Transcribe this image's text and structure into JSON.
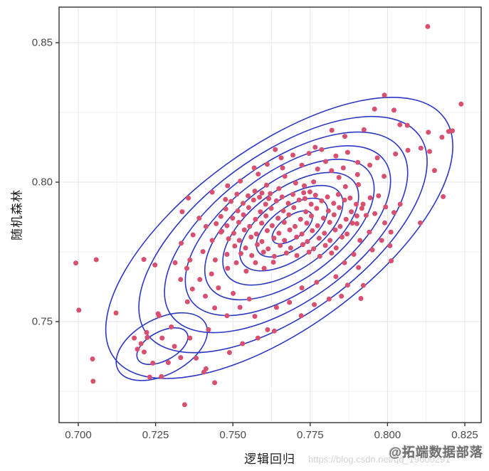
{
  "watermark": {
    "url": "https://blog.csdn.net/qq_19600291",
    "brand": "@拓端数据部落"
  },
  "colors": {
    "point": "#d94f70",
    "contour": "#2b38c4",
    "grid_major": "#e4e4e4",
    "grid_minor": "#f1f1f1",
    "panel_border": "#333333",
    "tick_mark": "#333333",
    "tick_text": "#4a4a4a"
  },
  "chart_data": {
    "type": "scatter",
    "title": "",
    "xlabel": "逻辑回归",
    "ylabel": "随机森林",
    "legend": "none",
    "grid": "on",
    "xlim": [
      0.69379,
      0.83029
    ],
    "ylim": [
      0.71378,
      0.86276
    ],
    "x_ticks": {
      "values": [
        0.7,
        0.725,
        0.75,
        0.775,
        0.8,
        0.825
      ],
      "labels": [
        "0.700",
        "0.725",
        "0.750",
        "0.775",
        "0.800",
        "0.825"
      ]
    },
    "y_ticks": {
      "values": [
        0.85,
        0.8,
        0.75
      ],
      "labels": [
        "0.85",
        "0.80",
        "0.75"
      ]
    },
    "x_minor": [
      0.7125,
      0.7375,
      0.7625,
      0.7875,
      0.8125
    ],
    "y_minor": [
      0.825,
      0.775,
      0.725
    ],
    "contours": [
      {
        "cx": 0.765,
        "cy": 0.78,
        "a": 0.066,
        "b": 0.0325,
        "rot": -36
      },
      {
        "cx": 0.7662,
        "cy": 0.7812,
        "a": 0.0545,
        "b": 0.0285,
        "rot": -36
      },
      {
        "cx": 0.7672,
        "cy": 0.782,
        "a": 0.0458,
        "b": 0.0248,
        "rot": -36
      },
      {
        "cx": 0.7678,
        "cy": 0.7826,
        "a": 0.0386,
        "b": 0.0212,
        "rot": -36
      },
      {
        "cx": 0.7683,
        "cy": 0.783,
        "a": 0.0318,
        "b": 0.0177,
        "rot": -36
      },
      {
        "cx": 0.7687,
        "cy": 0.7833,
        "a": 0.0255,
        "b": 0.0142,
        "rot": -36
      },
      {
        "cx": 0.7689,
        "cy": 0.7835,
        "a": 0.0194,
        "b": 0.0107,
        "rot": -36
      },
      {
        "cx": 0.7691,
        "cy": 0.7837,
        "a": 0.0134,
        "b": 0.0073,
        "rot": -36
      },
      {
        "cx": 0.7692,
        "cy": 0.7838,
        "a": 0.0076,
        "b": 0.004,
        "rot": -36
      },
      {
        "cx": 0.727,
        "cy": 0.741,
        "a": 0.016,
        "b": 0.01,
        "rot": -28
      },
      {
        "cx": 0.7272,
        "cy": 0.7412,
        "a": 0.009,
        "b": 0.0052,
        "rot": -28
      }
    ],
    "points": [
      [
        0.813,
        0.8558
      ],
      [
        0.8238,
        0.828
      ],
      [
        0.799,
        0.8312
      ],
      [
        0.8198,
        0.8182
      ],
      [
        0.8176,
        0.8161
      ],
      [
        0.8132,
        0.8179
      ],
      [
        0.8136,
        0.811
      ],
      [
        0.8108,
        0.8122
      ],
      [
        0.8066,
        0.8114
      ],
      [
        0.8026,
        0.8101
      ],
      [
        0.818,
        0.7948
      ],
      [
        0.8106,
        0.7854
      ],
      [
        0.8008,
        0.7772
      ],
      [
        0.8012,
        0.7718
      ],
      [
        0.7906,
        0.7694
      ],
      [
        0.7922,
        0.763
      ],
      [
        0.7914,
        0.7583
      ],
      [
        0.6992,
        0.771
      ],
      [
        0.7058,
        0.7722
      ],
      [
        0.7212,
        0.7723
      ],
      [
        0.7248,
        0.7703
      ],
      [
        0.7002,
        0.7541
      ],
      [
        0.7122,
        0.7531
      ],
      [
        0.7258,
        0.7528
      ],
      [
        0.7046,
        0.7366
      ],
      [
        0.7048,
        0.7286
      ],
      [
        0.7344,
        0.7202
      ],
      [
        0.7406,
        0.7319
      ],
      [
        0.7634,
        0.7466
      ],
      [
        0.7958,
        0.8262
      ],
      [
        0.8021,
        0.8258
      ],
      [
        0.804,
        0.8206
      ],
      [
        0.8064,
        0.8204
      ],
      [
        0.7924,
        0.8188
      ],
      [
        0.7862,
        0.8164
      ],
      [
        0.7766,
        0.8125
      ],
      [
        0.782,
        0.8186
      ],
      [
        0.821,
        0.8184
      ],
      [
        0.7356,
        0.7943
      ],
      [
        0.7336,
        0.7894
      ],
      [
        0.7476,
        0.7938
      ],
      [
        0.8152,
        0.8042
      ],
      [
        0.78,
        0.8074
      ],
      [
        0.7661,
        0.8051
      ],
      [
        0.7582,
        0.8029
      ],
      [
        0.7668,
        0.8021
      ],
      [
        0.7609,
        0.7989
      ],
      [
        0.7571,
        0.7968
      ],
      [
        0.7616,
        0.7941
      ],
      [
        0.7731,
        0.7987
      ],
      [
        0.7749,
        0.7965
      ],
      [
        0.7729,
        0.7962
      ],
      [
        0.7694,
        0.8097
      ],
      [
        0.7746,
        0.8103
      ],
      [
        0.7787,
        0.8117
      ],
      [
        0.7833,
        0.8094
      ],
      [
        0.7871,
        0.8107
      ],
      [
        0.7904,
        0.8071
      ],
      [
        0.7943,
        0.8061
      ],
      [
        0.7967,
        0.8087
      ],
      [
        0.7989,
        0.8021
      ],
      [
        0.7857,
        0.8051
      ],
      [
        0.7819,
        0.8041
      ],
      [
        0.7774,
        0.8047
      ],
      [
        0.7723,
        0.8061
      ],
      [
        0.7656,
        0.8087
      ],
      [
        0.7637,
        0.8117
      ],
      [
        0.7524,
        0.8004
      ],
      [
        0.7569,
        0.8051
      ],
      [
        0.7611,
        0.8064
      ],
      [
        0.7864,
        0.7984
      ],
      [
        0.7906,
        0.7991
      ],
      [
        0.7944,
        0.7944
      ],
      [
        0.7994,
        0.7911
      ],
      [
        0.7483,
        0.7987
      ],
      [
        0.7433,
        0.7964
      ],
      [
        0.7903,
        0.8027
      ],
      [
        0.7843,
        0.8017
      ],
      [
        0.7761,
        0.8001
      ],
      [
        0.7703,
        0.7997
      ],
      [
        0.7649,
        0.7977
      ],
      [
        0.7594,
        0.7961
      ],
      [
        0.7513,
        0.7957
      ],
      [
        0.7549,
        0.7951
      ],
      [
        0.7586,
        0.7946
      ],
      [
        0.7621,
        0.7959
      ],
      [
        0.7659,
        0.7947
      ],
      [
        0.7694,
        0.7956
      ],
      [
        0.7733,
        0.7941
      ],
      [
        0.7767,
        0.7953
      ],
      [
        0.7806,
        0.7947
      ],
      [
        0.7841,
        0.7956
      ],
      [
        0.7879,
        0.7943
      ],
      [
        0.7494,
        0.7931
      ],
      [
        0.7533,
        0.7924
      ],
      [
        0.7567,
        0.7936
      ],
      [
        0.7606,
        0.7921
      ],
      [
        0.7641,
        0.7933
      ],
      [
        0.7679,
        0.7924
      ],
      [
        0.7714,
        0.7936
      ],
      [
        0.7753,
        0.7921
      ],
      [
        0.7787,
        0.7933
      ],
      [
        0.7826,
        0.7924
      ],
      [
        0.7861,
        0.7936
      ],
      [
        0.7899,
        0.7921
      ],
      [
        0.7477,
        0.7904
      ],
      [
        0.7516,
        0.7897
      ],
      [
        0.7551,
        0.7909
      ],
      [
        0.7589,
        0.7894
      ],
      [
        0.7624,
        0.7906
      ],
      [
        0.7663,
        0.7897
      ],
      [
        0.7697,
        0.7909
      ],
      [
        0.7736,
        0.7894
      ],
      [
        0.7771,
        0.7906
      ],
      [
        0.7809,
        0.7897
      ],
      [
        0.7844,
        0.7909
      ],
      [
        0.7883,
        0.7894
      ],
      [
        0.7917,
        0.7906
      ],
      [
        0.7461,
        0.7877
      ],
      [
        0.7499,
        0.7871
      ],
      [
        0.7534,
        0.7883
      ],
      [
        0.7573,
        0.7867
      ],
      [
        0.7607,
        0.7879
      ],
      [
        0.7646,
        0.7871
      ],
      [
        0.7681,
        0.7883
      ],
      [
        0.7719,
        0.7867
      ],
      [
        0.7754,
        0.7879
      ],
      [
        0.7793,
        0.7871
      ],
      [
        0.7827,
        0.7883
      ],
      [
        0.7866,
        0.7867
      ],
      [
        0.7901,
        0.7879
      ],
      [
        0.7446,
        0.7851
      ],
      [
        0.7481,
        0.7844
      ],
      [
        0.7519,
        0.7856
      ],
      [
        0.7554,
        0.7841
      ],
      [
        0.7593,
        0.7853
      ],
      [
        0.7627,
        0.7844
      ],
      [
        0.7666,
        0.7856
      ],
      [
        0.7701,
        0.7841
      ],
      [
        0.7739,
        0.7853
      ],
      [
        0.7774,
        0.7844
      ],
      [
        0.7813,
        0.7856
      ],
      [
        0.7847,
        0.7841
      ],
      [
        0.7886,
        0.7853
      ],
      [
        0.7464,
        0.7824
      ],
      [
        0.7503,
        0.7817
      ],
      [
        0.7537,
        0.7829
      ],
      [
        0.7576,
        0.7814
      ],
      [
        0.7611,
        0.7826
      ],
      [
        0.7649,
        0.7817
      ],
      [
        0.7684,
        0.7829
      ],
      [
        0.7723,
        0.7814
      ],
      [
        0.7757,
        0.7826
      ],
      [
        0.7796,
        0.7817
      ],
      [
        0.7831,
        0.7829
      ],
      [
        0.7869,
        0.7814
      ],
      [
        0.7486,
        0.7797
      ],
      [
        0.7521,
        0.7791
      ],
      [
        0.7559,
        0.7803
      ],
      [
        0.7594,
        0.7787
      ],
      [
        0.7633,
        0.7799
      ],
      [
        0.7667,
        0.7791
      ],
      [
        0.7706,
        0.7803
      ],
      [
        0.7741,
        0.7787
      ],
      [
        0.7779,
        0.7799
      ],
      [
        0.7814,
        0.7791
      ],
      [
        0.7853,
        0.7803
      ],
      [
        0.7506,
        0.7771
      ],
      [
        0.7541,
        0.7764
      ],
      [
        0.7579,
        0.7776
      ],
      [
        0.7614,
        0.7761
      ],
      [
        0.7653,
        0.7773
      ],
      [
        0.7687,
        0.7764
      ],
      [
        0.7726,
        0.7776
      ],
      [
        0.7761,
        0.7761
      ],
      [
        0.7799,
        0.7773
      ],
      [
        0.7834,
        0.7764
      ],
      [
        0.7526,
        0.7744
      ],
      [
        0.7561,
        0.7737
      ],
      [
        0.7599,
        0.7749
      ],
      [
        0.7634,
        0.7734
      ],
      [
        0.7673,
        0.7746
      ],
      [
        0.7707,
        0.7737
      ],
      [
        0.7746,
        0.7749
      ],
      [
        0.7781,
        0.7734
      ],
      [
        0.7819,
        0.7746
      ],
      [
        0.7331,
        0.7651
      ],
      [
        0.7369,
        0.7617
      ],
      [
        0.7411,
        0.7591
      ],
      [
        0.7353,
        0.7571
      ],
      [
        0.7441,
        0.7549
      ],
      [
        0.7481,
        0.7521
      ],
      [
        0.7523,
        0.7551
      ],
      [
        0.7571,
        0.7519
      ],
      [
        0.7612,
        0.7471
      ],
      [
        0.7453,
        0.7621
      ],
      [
        0.7501,
        0.7601
      ],
      [
        0.7553,
        0.7581
      ],
      [
        0.7641,
        0.7551
      ],
      [
        0.7683,
        0.7569
      ],
      [
        0.7721,
        0.7521
      ],
      [
        0.7763,
        0.7561
      ],
      [
        0.7811,
        0.7581
      ],
      [
        0.7851,
        0.7591
      ],
      [
        0.7723,
        0.7621
      ],
      [
        0.7771,
        0.7641
      ],
      [
        0.7833,
        0.7661
      ],
      [
        0.7871,
        0.7631
      ],
      [
        0.7421,
        0.7471
      ],
      [
        0.7361,
        0.7441
      ],
      [
        0.7311,
        0.7411
      ],
      [
        0.7271,
        0.7441
      ],
      [
        0.7221,
        0.7461
      ],
      [
        0.7301,
        0.7481
      ],
      [
        0.7261,
        0.7521
      ],
      [
        0.7181,
        0.7441
      ],
      [
        0.7203,
        0.7421
      ],
      [
        0.7223,
        0.7443
      ],
      [
        0.7191,
        0.7401
      ],
      [
        0.7213,
        0.7391
      ],
      [
        0.7231,
        0.7301
      ],
      [
        0.7269,
        0.7303
      ],
      [
        0.7241,
        0.7351
      ],
      [
        0.7291,
        0.7353
      ],
      [
        0.7331,
        0.7371
      ],
      [
        0.7381,
        0.7369
      ],
      [
        0.7413,
        0.7331
      ],
      [
        0.7531,
        0.7421
      ],
      [
        0.7581,
        0.7441
      ],
      [
        0.7489,
        0.7389
      ],
      [
        0.7441,
        0.7281
      ],
      [
        0.7333,
        0.7781
      ],
      [
        0.7371,
        0.7811
      ],
      [
        0.7403,
        0.7751
      ],
      [
        0.7361,
        0.7721
      ],
      [
        0.7433,
        0.7791
      ],
      [
        0.7461,
        0.7821
      ],
      [
        0.7413,
        0.7841
      ],
      [
        0.7391,
        0.7871
      ],
      [
        0.7443,
        0.7721
      ],
      [
        0.7483,
        0.7691
      ],
      [
        0.7431,
        0.7671
      ],
      [
        0.7393,
        0.7651
      ],
      [
        0.7351,
        0.7691
      ],
      [
        0.7313,
        0.7711
      ],
      [
        0.7481,
        0.7741
      ],
      [
        0.7511,
        0.7711
      ],
      [
        0.7543,
        0.7681
      ],
      [
        0.7573,
        0.7711
      ],
      [
        0.7601,
        0.7691
      ],
      [
        0.7631,
        0.7713
      ],
      [
        0.7921,
        0.7921
      ],
      [
        0.7959,
        0.7887
      ],
      [
        0.7991,
        0.7854
      ],
      [
        0.7941,
        0.7821
      ],
      [
        0.7911,
        0.7791
      ],
      [
        0.7951,
        0.7757
      ],
      [
        0.7981,
        0.7791
      ],
      [
        0.8011,
        0.7821
      ],
      [
        0.8041,
        0.7921
      ],
      [
        0.7901,
        0.7851
      ],
      [
        0.7931,
        0.7881
      ],
      [
        0.7971,
        0.7951
      ],
      [
        0.8021,
        0.7891
      ],
      [
        0.7891,
        0.7741
      ],
      [
        0.7861,
        0.7711
      ]
    ]
  }
}
